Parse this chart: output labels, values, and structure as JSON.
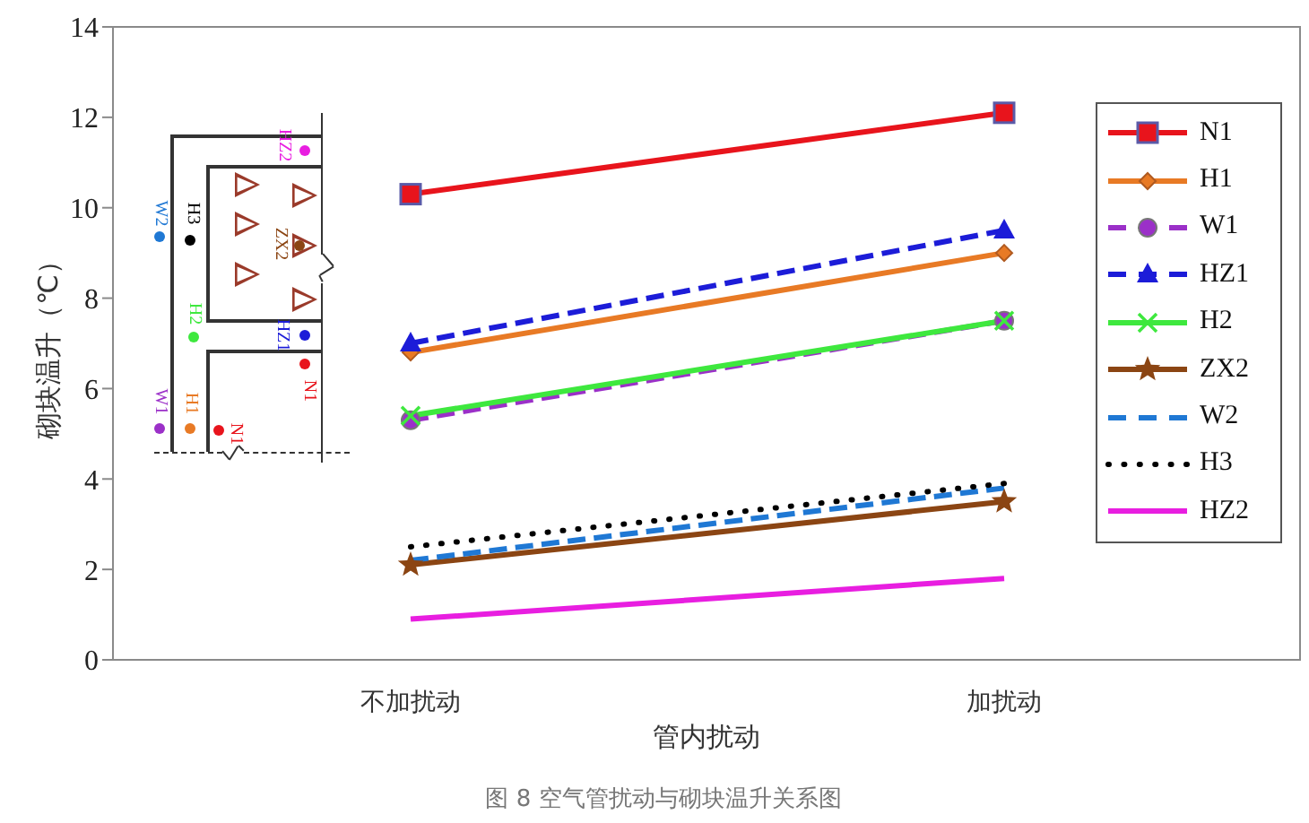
{
  "chart_data": {
    "type": "line",
    "categories": [
      "不加扰动",
      "加扰动"
    ],
    "xlabel": "管内扰动",
    "ylabel": "砌块温升（℃）",
    "ylim": [
      0,
      14
    ],
    "yticks": [
      0,
      2,
      4,
      6,
      8,
      10,
      12,
      14
    ],
    "legend": "right",
    "annotations": [
      "图 8  空气管扰动与砌块温升关系图",
      "W2",
      "H3",
      "HZ2",
      "ZX2",
      "H2",
      "HZ1",
      "N1",
      "W1",
      "H1",
      "N1"
    ],
    "series": [
      {
        "name": "N1",
        "color": "#e8141c",
        "values": [
          10.3,
          12.1
        ],
        "marker": "square",
        "line_style": "solid"
      },
      {
        "name": "H1",
        "color": "#e87a25",
        "values": [
          6.8,
          9.0
        ],
        "marker": "diamond",
        "line_style": "solid"
      },
      {
        "name": "W1",
        "color": "#9b30c8",
        "values": [
          5.3,
          7.5
        ],
        "marker": "circle",
        "line_style": "dashed"
      },
      {
        "name": "HZ1",
        "color": "#1c1cd8",
        "values": [
          7.0,
          9.5
        ],
        "marker": "triangle",
        "line_style": "dashed"
      },
      {
        "name": "H2",
        "color": "#3ee83e",
        "values": [
          5.4,
          7.5
        ],
        "marker": "cross",
        "line_style": "solid"
      },
      {
        "name": "ZX2",
        "color": "#8b4513",
        "values": [
          2.1,
          3.5
        ],
        "marker": "star",
        "line_style": "solid"
      },
      {
        "name": "W2",
        "color": "#1f78d4",
        "values": [
          2.2,
          3.8
        ],
        "marker": "none",
        "line_style": "dashed"
      },
      {
        "name": "H3",
        "color": "#000000",
        "values": [
          2.5,
          3.9
        ],
        "marker": "none",
        "line_style": "dotted"
      },
      {
        "name": "HZ2",
        "color": "#e81ee0",
        "values": [
          0.9,
          1.8
        ],
        "marker": "none",
        "line_style": "solid"
      }
    ]
  }
}
